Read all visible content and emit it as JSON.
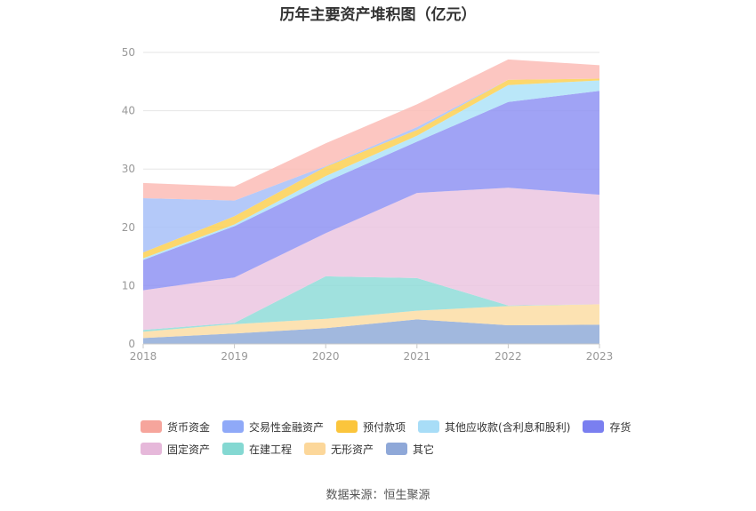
{
  "source": "数据来源：恒生聚源",
  "chart_data": {
    "type": "area",
    "stacked": true,
    "title": "历年主要资产堆积图（亿元）",
    "categories": [
      "2018",
      "2019",
      "2020",
      "2021",
      "2022",
      "2023"
    ],
    "ylim": [
      0,
      50
    ],
    "yticks": [
      "0",
      "10",
      "20",
      "30",
      "40",
      "50"
    ],
    "grid": true,
    "legend_position": "bottom",
    "series": [
      {
        "name": "其它",
        "color": "#91acd8",
        "values": [
          1.0,
          1.8,
          2.7,
          4.2,
          3.2,
          3.3
        ]
      },
      {
        "name": "无形资产",
        "color": "#fcdda4",
        "values": [
          1.1,
          1.6,
          1.6,
          1.5,
          3.3,
          3.5
        ]
      },
      {
        "name": "在建工程",
        "color": "#8fdcd8",
        "values": [
          0.3,
          0.2,
          7.3,
          5.6,
          0.1,
          0.0
        ]
      },
      {
        "name": "固定资产",
        "color": "#ebc5e1",
        "values": [
          6.8,
          7.8,
          7.4,
          14.6,
          20.2,
          18.8
        ]
      },
      {
        "name": "存货",
        "color": "#8f93f3",
        "values": [
          5.2,
          8.8,
          8.8,
          8.8,
          14.7,
          17.8
        ]
      },
      {
        "name": "其他应收款(含利息和股利)",
        "color": "#aee3f8",
        "values": [
          0.3,
          0.3,
          1.0,
          1.0,
          2.9,
          1.8
        ]
      },
      {
        "name": "预付款项",
        "color": "#fbd052",
        "values": [
          1.0,
          1.4,
          1.6,
          1.0,
          0.9,
          0.3
        ]
      },
      {
        "name": "交易性金融资产",
        "color": "#a7bff8",
        "values": [
          9.3,
          2.7,
          0.1,
          0.5,
          0.0,
          0.0
        ]
      },
      {
        "name": "货币资金",
        "color": "#fbbcb6",
        "values": [
          2.6,
          2.4,
          3.9,
          3.9,
          3.5,
          2.3
        ]
      }
    ]
  },
  "legend": [
    {
      "label": "货币资金",
      "color": "#f6a59c"
    },
    {
      "label": "交易性金融资产",
      "color": "#8fa9f8"
    },
    {
      "label": "预付款项",
      "color": "#fbc53c"
    },
    {
      "label": "其他应收款(含利息和股利)",
      "color": "#a8ddf7"
    },
    {
      "label": "存货",
      "color": "#7a7ff0"
    },
    {
      "label": "固定资产",
      "color": "#e6b8da"
    },
    {
      "label": "在建工程",
      "color": "#84d8d2"
    },
    {
      "label": "无形资产",
      "color": "#fcd79a"
    },
    {
      "label": "其它",
      "color": "#8fa8d8"
    }
  ]
}
